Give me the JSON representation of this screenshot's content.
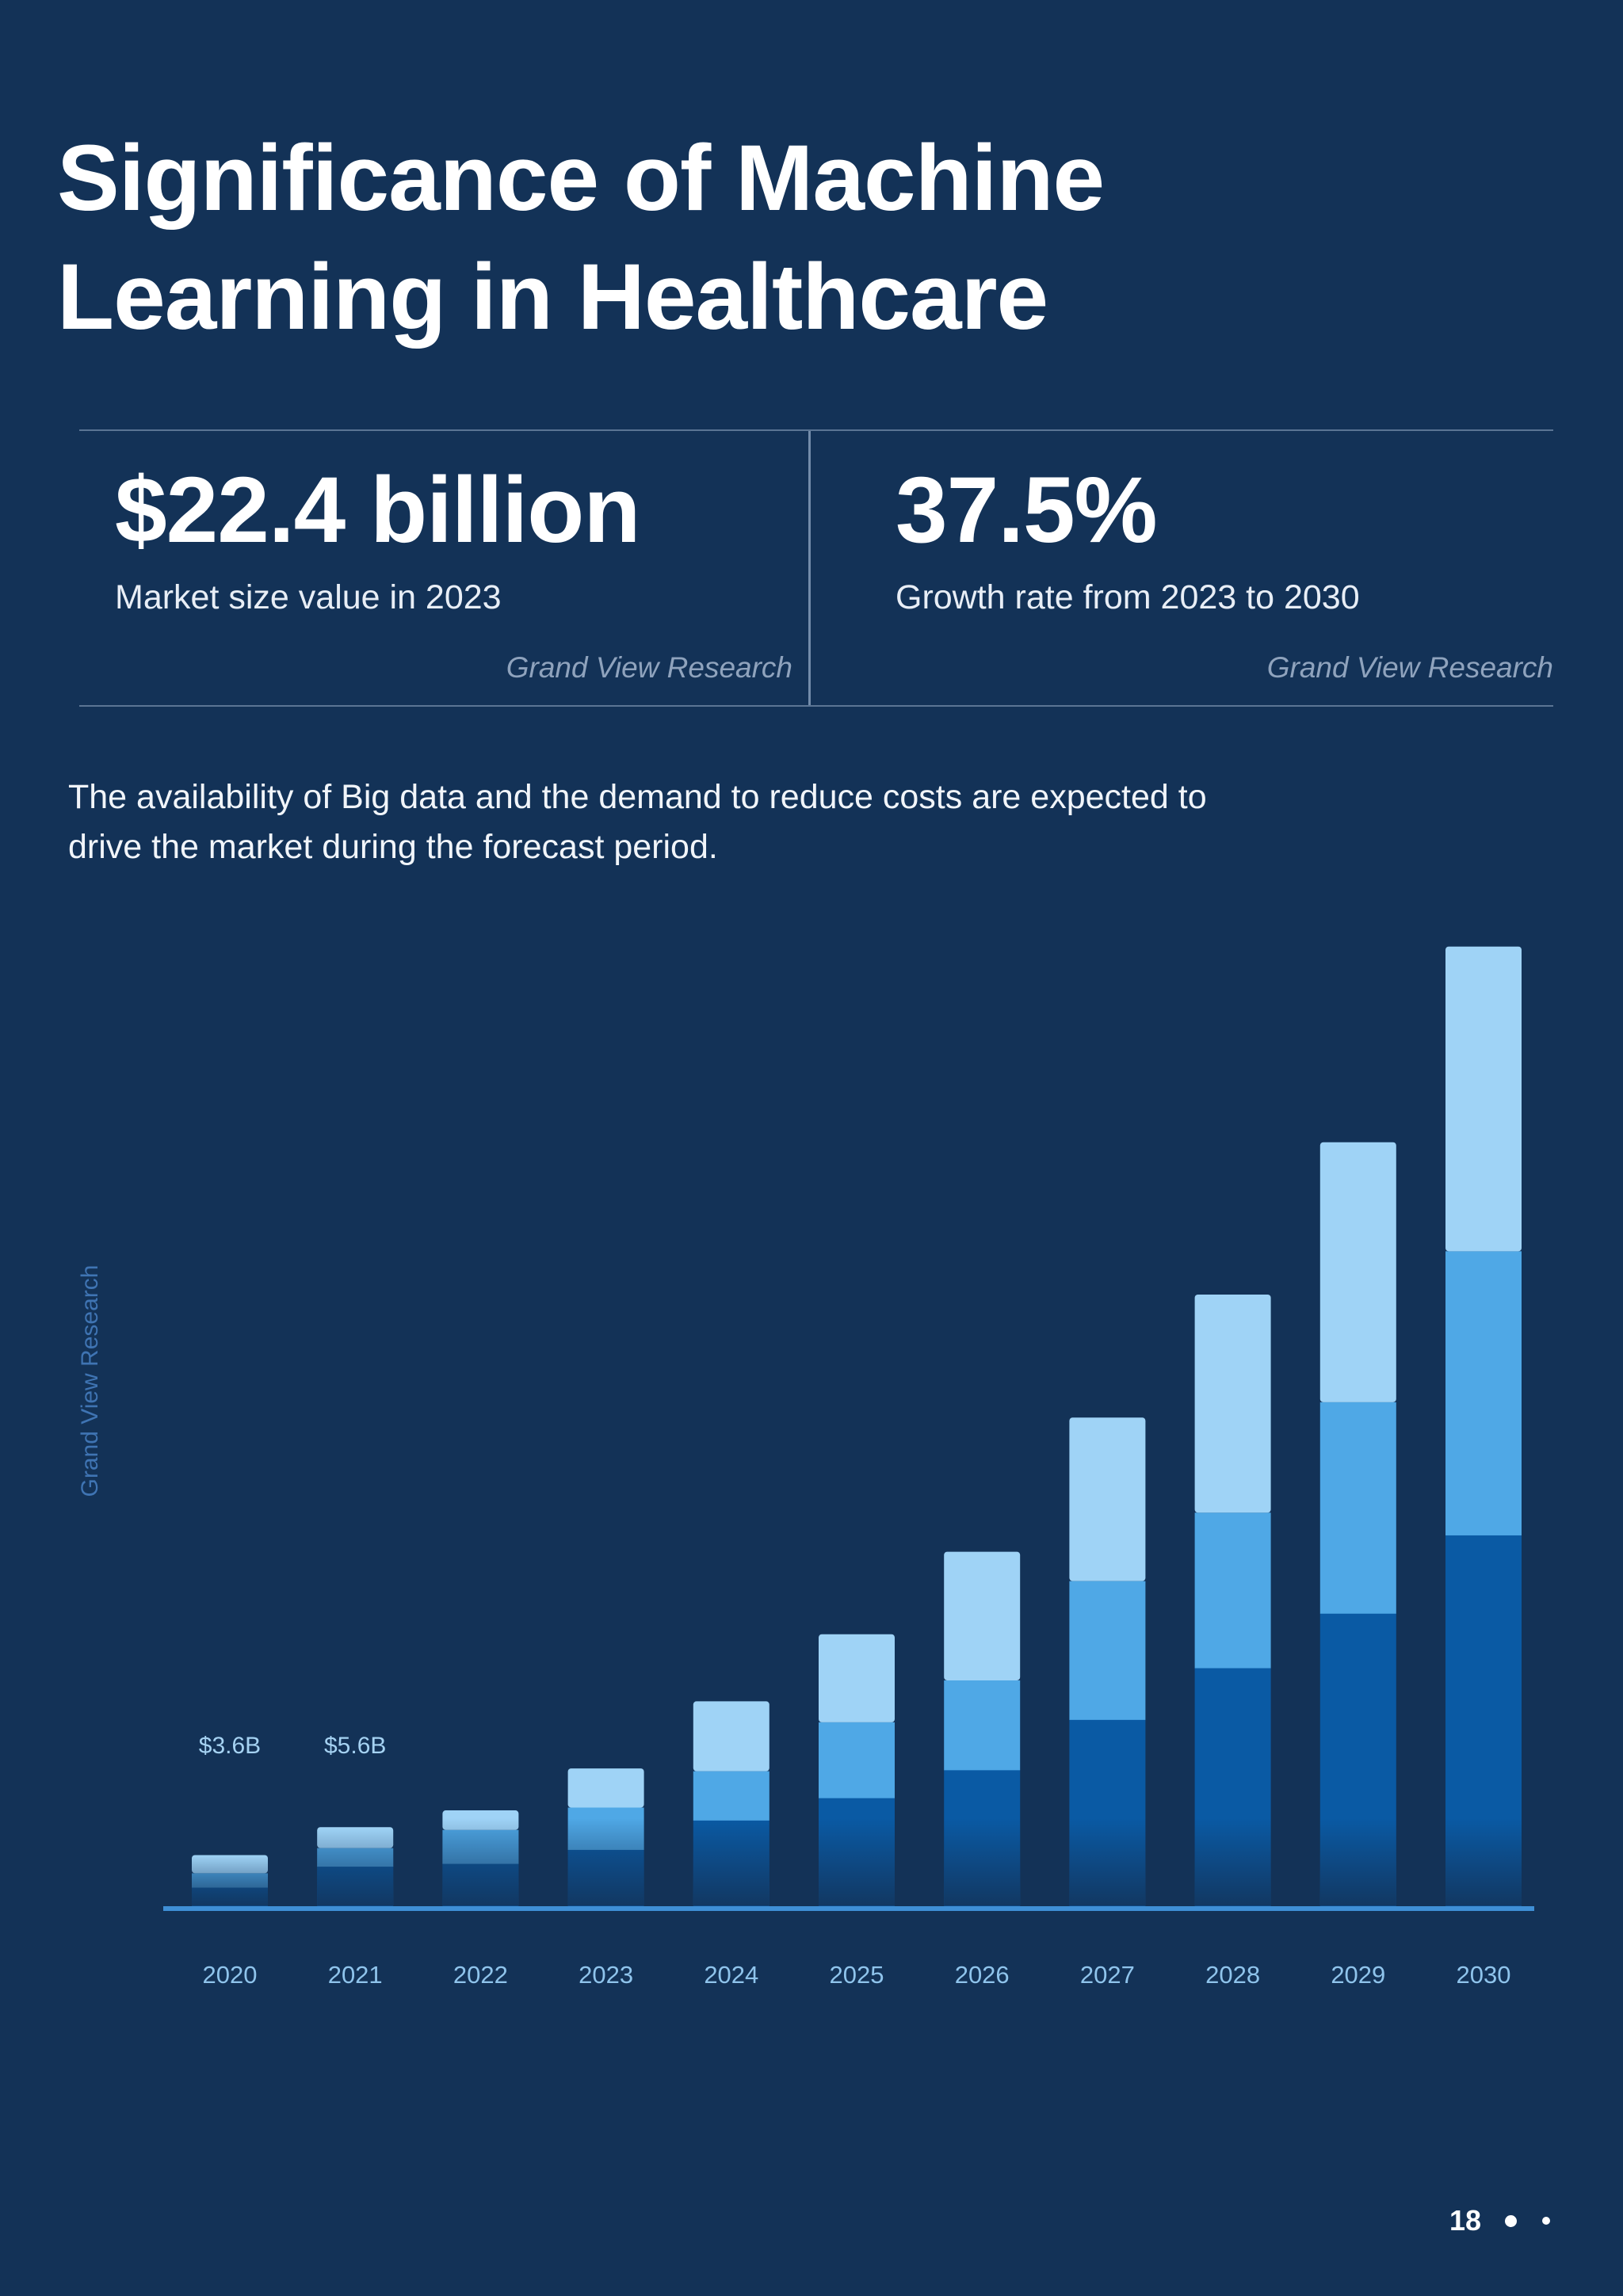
{
  "title": "Significance of Machine Learning in Healthcare",
  "stats": [
    {
      "value": "$22.4 billion",
      "label": "Market size value in 2023",
      "source": "Grand View Research"
    },
    {
      "value": "37.5%",
      "label": "Growth rate from 2023 to 2030",
      "source": "Grand View Research"
    }
  ],
  "description": "The availability of Big data and the demand to reduce costs are expected to drive the market during the forecast period.",
  "side_source": "Grand View Research",
  "page_number": "18",
  "colors": {
    "background": "#133257",
    "segment_light": "#9fd3f6",
    "segment_mid": "#4fa8e6",
    "segment_dark": "#0a5aa4",
    "axis_line": "#3f8fd6",
    "tick_label": "#8fc4ec",
    "data_label": "#a5d2f2"
  },
  "chart_data": {
    "type": "bar",
    "stacked": true,
    "categories": [
      "2020",
      "2021",
      "2022",
      "2023",
      "2024",
      "2025",
      "2026",
      "2027",
      "2028",
      "2029",
      "2030"
    ],
    "totals": [
      3.6,
      5.6,
      6.8,
      9.8,
      14.6,
      19.4,
      25.3,
      34.9,
      43.7,
      54.6,
      68.6
    ],
    "segments": [
      {
        "values": [
          1.3,
          2.8,
          3.0,
          4.0,
          6.1,
          7.7,
          9.7,
          13.3,
          17.0,
          20.9,
          26.5
        ]
      },
      {
        "values": [
          1.0,
          1.3,
          2.4,
          3.0,
          3.5,
          5.4,
          6.4,
          9.9,
          11.1,
          15.1,
          20.3
        ]
      },
      {
        "values": [
          1.3,
          1.5,
          1.4,
          2.8,
          5.0,
          6.3,
          9.2,
          11.7,
          15.6,
          18.6,
          21.8
        ]
      }
    ],
    "data_labels": [
      {
        "category": "2020",
        "text": "$3.6B"
      },
      {
        "category": "2021",
        "text": "$5.6B"
      }
    ],
    "ylim": [
      0,
      70
    ]
  }
}
